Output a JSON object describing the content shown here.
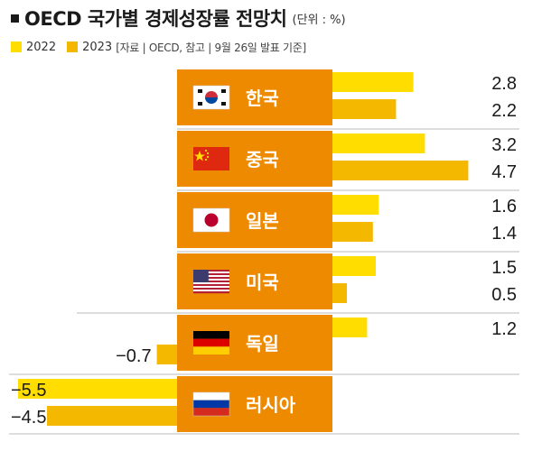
{
  "header": {
    "title": "OECD 국가별 경제성장률 전망치",
    "unit": "(단위 : %)"
  },
  "legend": {
    "items": [
      {
        "label": "2022",
        "color": "#FFDD00"
      },
      {
        "label": "2023",
        "color": "#F5B800"
      }
    ],
    "source": "[자료 | OECD, 참고 | 9월 26일 발표 기준]"
  },
  "colors": {
    "label_box": "#EE8A00",
    "bar_2022": "#FFDD00",
    "bar_2023": "#F5B800",
    "separator": "#bbbbbb"
  },
  "chart_data": {
    "type": "bar",
    "orientation": "horizontal",
    "categories": [
      "한국",
      "중국",
      "일본",
      "미국",
      "독일",
      "러시아"
    ],
    "flags": [
      "korea-flag-icon",
      "china-flag-icon",
      "japan-flag-icon",
      "usa-flag-icon",
      "germany-flag-icon",
      "russia-flag-icon"
    ],
    "series": [
      {
        "name": "2022",
        "values": [
          2.8,
          3.2,
          1.6,
          1.5,
          1.2,
          -5.5
        ]
      },
      {
        "name": "2023",
        "values": [
          2.2,
          4.7,
          1.4,
          0.5,
          -0.7,
          -4.5
        ]
      }
    ],
    "value_labels": [
      [
        "2.8",
        "2.2"
      ],
      [
        "3.2",
        "4.7"
      ],
      [
        "1.6",
        "1.4"
      ],
      [
        "1.5",
        "0.5"
      ],
      [
        "1.2",
        "−0.7"
      ],
      [
        "−5.5",
        "−4.5"
      ]
    ]
  }
}
